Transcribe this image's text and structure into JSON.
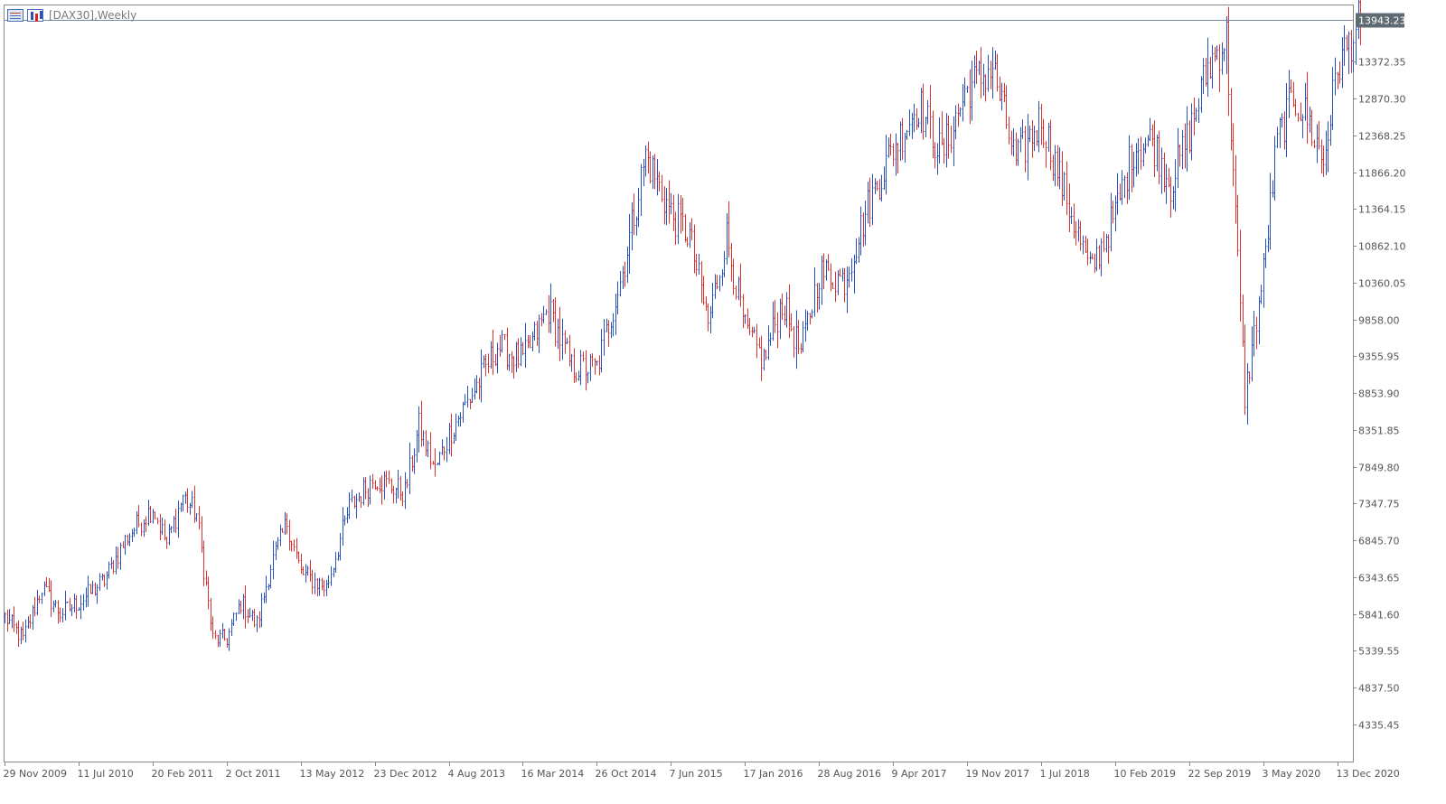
{
  "window": {
    "title": "[DAX30],Weekly",
    "icons": [
      "table-icon",
      "bar-chart-icon"
    ]
  },
  "current_price": "13943.23",
  "colors": {
    "up": "#2a52be",
    "down": "#e03131",
    "price_line": "#7a86a8",
    "axis": "#888888",
    "text": "#555555",
    "price_tag_bg": "#5f6b73"
  },
  "chart_data": {
    "type": "bar",
    "symbol": "DAX30",
    "timeframe": "Weekly",
    "style": "OHLC bars, blue = up week, red = down week",
    "ylim": [
      3990,
      14100
    ],
    "y_ticks": [
      "13372.35",
      "12870.30",
      "12368.25",
      "11866.20",
      "11364.15",
      "10862.10",
      "10360.05",
      "9858.00",
      "9355.95",
      "8853.90",
      "8351.85",
      "7849.80",
      "7347.75",
      "6845.70",
      "6343.65",
      "5841.60",
      "5339.55",
      "4837.50",
      "4335.45"
    ],
    "x_ticks": [
      "29 Nov 2009",
      "11 Jul 2010",
      "20 Feb 2011",
      "2 Oct 2011",
      "13 May 2012",
      "23 Dec 2012",
      "4 Aug 2013",
      "16 Mar 2014",
      "26 Oct 2014",
      "7 Jun 2015",
      "17 Jan 2016",
      "28 Aug 2016",
      "9 Apr 2017",
      "19 Nov 2017",
      "1 Jul 2018",
      "10 Feb 2019",
      "22 Sep 2019",
      "3 May 2020",
      "13 Dec 2020"
    ],
    "x_tick_bar_spacing": 32,
    "bars_total": 587,
    "close_anchors": [
      [
        "29 Nov 2009",
        5800
      ],
      [
        "Feb 2010",
        5500
      ],
      [
        "Apr 2010",
        6200
      ],
      [
        "Jun 2010",
        5850
      ],
      [
        "11 Jul 2010",
        6000
      ],
      [
        "Sep 2010",
        6300
      ],
      [
        "Nov 2010",
        6900
      ],
      [
        "20 Feb 2011",
        7300
      ],
      [
        "Mar 2011",
        6800
      ],
      [
        "May 2011",
        7450
      ],
      [
        "Jul 2011",
        7200
      ],
      [
        "Aug 2011",
        5500
      ],
      [
        "2 Oct 2011",
        5500
      ],
      [
        "Oct 2011",
        6000
      ],
      [
        "Nov 2011",
        5700
      ],
      [
        "Jan 2012",
        6500
      ],
      [
        "Mar 2012",
        7100
      ],
      [
        "13 May 2012",
        6400
      ],
      [
        "Jun 2012",
        6200
      ],
      [
        "Sep 2012",
        7300
      ],
      [
        "23 Dec 2012",
        7700
      ],
      [
        "Feb 2013",
        7600
      ],
      [
        "Apr 2013",
        7500
      ],
      [
        "May 2013",
        8400
      ],
      [
        "Jun 2013",
        7800
      ],
      [
        "4 Aug 2013",
        8300
      ],
      [
        "Oct 2013",
        8900
      ],
      [
        "Dec 2013",
        9500
      ],
      [
        "16 Mar 2014",
        9300
      ],
      [
        "Jun 2014",
        10000
      ],
      [
        "Aug 2014",
        9200
      ],
      [
        "26 Oct 2014",
        9200
      ],
      [
        "Jan 2015",
        10500
      ],
      [
        "Apr 2015",
        12100
      ],
      [
        "7 Jun 2015",
        11300
      ],
      [
        "Aug 2015",
        11000
      ],
      [
        "Sep 2015",
        9800
      ],
      [
        "Nov 2015",
        11000
      ],
      [
        "17 Jan 2016",
        9700
      ],
      [
        "Feb 2016",
        9300
      ],
      [
        "Apr 2016",
        10100
      ],
      [
        "Jun 2016",
        9400
      ],
      [
        "28 Aug 2016",
        10500
      ],
      [
        "Nov 2016",
        10400
      ],
      [
        "Dec 2016",
        11400
      ],
      [
        "9 Apr 2017",
        12200
      ],
      [
        "Jun 2017",
        12800
      ],
      [
        "Aug 2017",
        12100
      ],
      [
        "19 Nov 2017",
        13000
      ],
      [
        "Jan 2018",
        13300
      ],
      [
        "Mar 2018",
        12000
      ],
      [
        "1 Jul 2018",
        12600
      ],
      [
        "Oct 2018",
        11500
      ],
      [
        "Dec 2018",
        10500
      ],
      [
        "10 Feb 2019",
        11300
      ],
      [
        "Apr 2019",
        12200
      ],
      [
        "Jun 2019",
        12300
      ],
      [
        "Aug 2019",
        11700
      ],
      [
        "22 Sep 2019",
        12400
      ],
      [
        "Jan 2020",
        13300
      ],
      [
        "Feb 2020",
        13700
      ],
      [
        "Mar 2020",
        8800
      ],
      [
        "3 May 2020",
        10500
      ],
      [
        "Jun 2020",
        12300
      ],
      [
        "Aug 2020",
        12900
      ],
      [
        "Oct 2020",
        12600
      ],
      [
        "Nov 2020",
        12000
      ],
      [
        "13 Dec 2020",
        13300
      ],
      [
        "Jan 2021",
        13943.23
      ]
    ],
    "last_close": 13943.23
  }
}
